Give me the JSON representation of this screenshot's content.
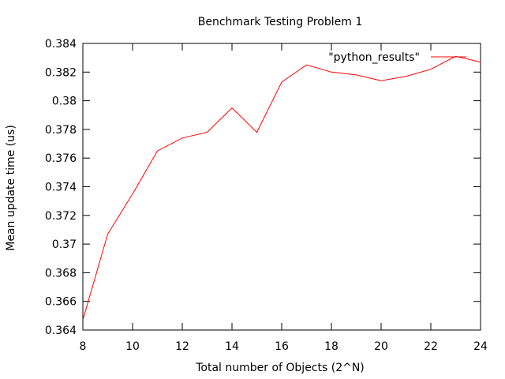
{
  "chart_data": {
    "type": "line",
    "title": "Benchmark Testing Problem 1",
    "xlabel": "Total number of Objects (2^N)",
    "ylabel": "Mean update time  (us)",
    "xlim": [
      8,
      24
    ],
    "ylim": [
      0.364,
      0.384
    ],
    "xticks": [
      8,
      10,
      12,
      14,
      16,
      18,
      20,
      22,
      24
    ],
    "yticks": [
      0.364,
      0.366,
      0.368,
      0.37,
      0.372,
      0.374,
      0.376,
      0.378,
      0.38,
      0.382,
      0.384
    ],
    "ytick_labels": [
      "0.364",
      "0.366",
      "0.368",
      "0.37",
      "0.372",
      "0.374",
      "0.376",
      "0.378",
      "0.38",
      "0.382",
      "0.384"
    ],
    "xtick_labels": [
      "8",
      "10",
      "12",
      "14",
      "16",
      "18",
      "20",
      "22",
      "24"
    ],
    "grid": false,
    "legend_position": "top-right",
    "series": [
      {
        "name": "\"python_results\"",
        "color": "#ff0000",
        "x": [
          8,
          9,
          10,
          11,
          12,
          13,
          14,
          15,
          16,
          17,
          18,
          19,
          20,
          21,
          22,
          23,
          24
        ],
        "y": [
          0.3647,
          0.3707,
          0.3735,
          0.3765,
          0.3774,
          0.3778,
          0.3795,
          0.3778,
          0.3813,
          0.3825,
          0.382,
          0.3818,
          0.3814,
          0.3817,
          0.3822,
          0.3831,
          0.3827
        ]
      }
    ]
  }
}
